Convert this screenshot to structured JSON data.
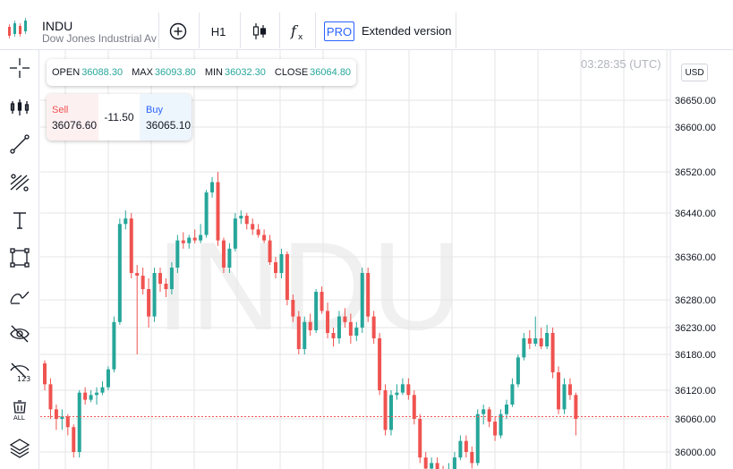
{
  "symbol": {
    "ticker": "INDU",
    "name": "Dow Jones Industrial Ave"
  },
  "toolbar": {
    "timeframe": "H1",
    "pro_badge": "PRO",
    "extended_label": "Extended version"
  },
  "ohlc": {
    "open_label": "OPEN",
    "open": "36088.30",
    "max_label": "MAX",
    "max": "36093.80",
    "min_label": "MIN",
    "min": "36032.30",
    "close_label": "CLOSE",
    "close": "36064.80"
  },
  "trade": {
    "sell_label": "Sell",
    "sell_value": "36076.60",
    "spread": "-11.50",
    "buy_label": "Buy",
    "buy_value": "36065.10"
  },
  "clock": "03:28:35 (UTC)",
  "currency": "USD",
  "watermark": "INDU",
  "colors": {
    "up": "#26a69a",
    "down": "#ef5350",
    "grid": "#e6e6e6",
    "accent": "#2962ff"
  },
  "left_tools": [
    "crosshair-icon",
    "indicators-icon",
    "trend-line-icon",
    "fib-icon",
    "text-icon",
    "rectangle-icon",
    "brush-icon",
    "hide-drawings-icon",
    "hide-values-icon",
    "delete-all-icon",
    "layers-icon"
  ],
  "chart_data": {
    "type": "candlestick",
    "y_ticks": [
      "36650.00",
      "36600.00",
      "36520.00",
      "36440.00",
      "36360.00",
      "36280.00",
      "36230.00",
      "36180.00",
      "36120.00",
      "36060.00",
      "36000.00"
    ],
    "y_tick_values": [
      36650,
      36600,
      36520,
      36440,
      36360,
      36280,
      36230,
      36180,
      36120,
      36060,
      36000
    ],
    "current_price": 36064.8,
    "candles": [
      [
        36165,
        36170,
        36120,
        36130
      ],
      [
        36130,
        36140,
        36060,
        36080
      ],
      [
        36080,
        36090,
        36040,
        36060
      ],
      [
        36060,
        36080,
        36040,
        36065
      ],
      [
        36065,
        36070,
        36030,
        36045
      ],
      [
        36045,
        36050,
        35990,
        36000
      ],
      [
        36000,
        36120,
        35990,
        36115
      ],
      [
        36115,
        36125,
        36090,
        36100
      ],
      [
        36100,
        36120,
        36095,
        36110
      ],
      [
        36110,
        36125,
        36090,
        36115
      ],
      [
        36115,
        36135,
        36110,
        36125
      ],
      [
        36125,
        36160,
        36120,
        36155
      ],
      [
        36155,
        36250,
        36150,
        36240
      ],
      [
        36240,
        36430,
        36235,
        36420
      ],
      [
        36420,
        36445,
        36410,
        36430
      ],
      [
        36430,
        36440,
        36320,
        36330
      ],
      [
        36330,
        36345,
        36180,
        36325
      ],
      [
        36325,
        36340,
        36290,
        36300
      ],
      [
        36300,
        36320,
        36230,
        36250
      ],
      [
        36250,
        36340,
        36240,
        36330
      ],
      [
        36330,
        36340,
        36295,
        36310
      ],
      [
        36310,
        36320,
        36285,
        36300
      ],
      [
        36300,
        36350,
        36290,
        36340
      ],
      [
        36340,
        36400,
        36330,
        36390
      ],
      [
        36390,
        36405,
        36375,
        36385
      ],
      [
        36385,
        36400,
        36375,
        36395
      ],
      [
        36395,
        36410,
        36385,
        36390
      ],
      [
        36390,
        36420,
        36385,
        36400
      ],
      [
        36400,
        36485,
        36395,
        36480
      ],
      [
        36480,
        36510,
        36470,
        36500
      ],
      [
        36500,
        36520,
        36380,
        36390
      ],
      [
        36390,
        36395,
        36330,
        36340
      ],
      [
        36340,
        36385,
        36330,
        36375
      ],
      [
        36375,
        36440,
        36370,
        36430
      ],
      [
        36430,
        36445,
        36420,
        36435
      ],
      [
        36435,
        36440,
        36410,
        36420
      ],
      [
        36420,
        36430,
        36400,
        36410
      ],
      [
        36410,
        36420,
        36395,
        36400
      ],
      [
        36400,
        36410,
        36385,
        36390
      ],
      [
        36390,
        36400,
        36345,
        36350
      ],
      [
        36350,
        36360,
        36320,
        36330
      ],
      [
        36330,
        36375,
        36320,
        36365
      ],
      [
        36365,
        36370,
        36270,
        36280
      ],
      [
        36280,
        36290,
        36240,
        36250
      ],
      [
        36250,
        36260,
        36180,
        36190
      ],
      [
        36190,
        36250,
        36180,
        36240
      ],
      [
        36240,
        36255,
        36215,
        36225
      ],
      [
        36225,
        36300,
        36220,
        36295
      ],
      [
        36295,
        36305,
        36255,
        36260
      ],
      [
        36260,
        36275,
        36210,
        36220
      ],
      [
        36220,
        36230,
        36195,
        36210
      ],
      [
        36210,
        36260,
        36200,
        36250
      ],
      [
        36250,
        36265,
        36230,
        36240
      ],
      [
        36240,
        36255,
        36200,
        36215
      ],
      [
        36215,
        36240,
        36205,
        36230
      ],
      [
        36230,
        36340,
        36220,
        36330
      ],
      [
        36330,
        36340,
        36240,
        36250
      ],
      [
        36250,
        36260,
        36200,
        36210
      ],
      [
        36210,
        36220,
        36110,
        36120
      ],
      [
        36120,
        36130,
        36030,
        36040
      ],
      [
        36040,
        36120,
        36030,
        36110
      ],
      [
        36110,
        36130,
        36100,
        36115
      ],
      [
        36115,
        36140,
        36110,
        36130
      ],
      [
        36130,
        36140,
        36100,
        36110
      ],
      [
        36110,
        36120,
        36050,
        36060
      ],
      [
        36060,
        36070,
        35980,
        35990
      ],
      [
        35990,
        36000,
        35960,
        35970
      ],
      [
        35970,
        35990,
        35940,
        35980
      ],
      [
        35980,
        35990,
        35950,
        35960
      ],
      [
        35960,
        35975,
        35940,
        35955
      ],
      [
        35955,
        35980,
        35950,
        35965
      ],
      [
        35965,
        36000,
        35960,
        35990
      ],
      [
        35990,
        36030,
        35985,
        36020
      ],
      [
        36020,
        36030,
        35990,
        36000
      ],
      [
        36000,
        36010,
        35970,
        35980
      ],
      [
        35980,
        36080,
        35975,
        36070
      ],
      [
        36070,
        36090,
        36050,
        36080
      ],
      [
        36080,
        36085,
        36045,
        36055
      ],
      [
        36055,
        36065,
        36020,
        36030
      ],
      [
        36030,
        36080,
        36025,
        36070
      ],
      [
        36070,
        36100,
        36060,
        36090
      ],
      [
        36090,
        36140,
        36085,
        36130
      ],
      [
        36130,
        36180,
        36125,
        36175
      ],
      [
        36175,
        36220,
        36170,
        36210
      ],
      [
        36210,
        36225,
        36190,
        36200
      ],
      [
        36200,
        36250,
        36195,
        36210
      ],
      [
        36210,
        36230,
        36190,
        36195
      ],
      [
        36195,
        36235,
        36190,
        36220
      ],
      [
        36220,
        36230,
        36140,
        36150
      ],
      [
        36150,
        36160,
        36070,
        36080
      ],
      [
        36080,
        36140,
        36070,
        36130
      ],
      [
        36130,
        36140,
        36100,
        36110
      ],
      [
        36110,
        36115,
        36030,
        36060
      ]
    ]
  }
}
